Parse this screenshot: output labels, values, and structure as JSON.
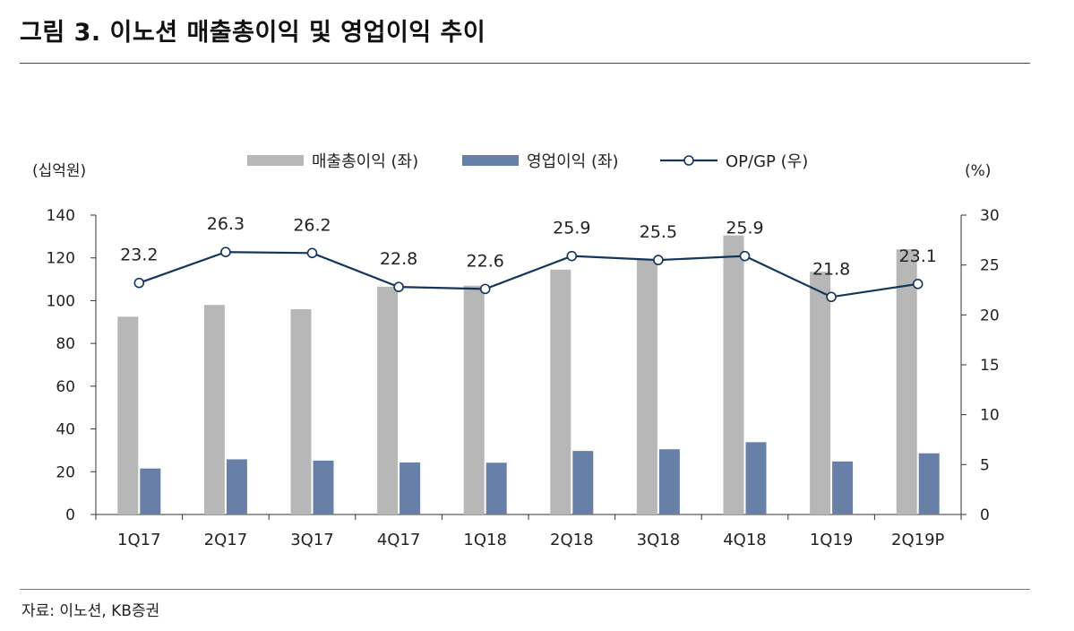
{
  "title": "그림 3. 이노션 매출총이익 및 영업이익 추이",
  "source": "자료: 이노션, KB증권",
  "colors": {
    "gross": "#b7b7b7",
    "op": "#6880a8",
    "line": "#15365c",
    "axis": "#333333"
  },
  "chart_data": {
    "type": "bar",
    "categories": [
      "1Q17",
      "2Q17",
      "3Q17",
      "4Q17",
      "1Q18",
      "2Q18",
      "3Q18",
      "4Q18",
      "1Q19",
      "2Q19P"
    ],
    "left_axis": {
      "unit_label": "(십억원)",
      "min": 0,
      "max": 140,
      "ticks": [
        0,
        20,
        40,
        60,
        80,
        100,
        120,
        140
      ]
    },
    "right_axis": {
      "unit_label": "(%)",
      "min": 0,
      "max": 30,
      "ticks": [
        0,
        5,
        10,
        15,
        20,
        25,
        30
      ]
    },
    "series": [
      {
        "name": "매출총이익 (좌)",
        "type": "bar",
        "axis": "left",
        "values": [
          92.5,
          98,
          96,
          106.5,
          107,
          114.5,
          119.5,
          130.5,
          113.5,
          124
        ]
      },
      {
        "name": "영업이익 (좌)",
        "type": "bar",
        "axis": "left",
        "values": [
          21.5,
          25.8,
          25.2,
          24.3,
          24.2,
          29.7,
          30.5,
          33.8,
          24.8,
          28.6
        ]
      },
      {
        "name": "OP/GP (우)",
        "type": "line",
        "axis": "right",
        "values": [
          23.2,
          26.3,
          26.2,
          22.8,
          22.6,
          25.9,
          25.5,
          25.9,
          21.8,
          23.1
        ],
        "labels": [
          "23.2",
          "26.3",
          "26.2",
          "22.8",
          "22.6",
          "25.9",
          "25.5",
          "25.9",
          "21.8",
          "23.1"
        ]
      }
    ]
  }
}
